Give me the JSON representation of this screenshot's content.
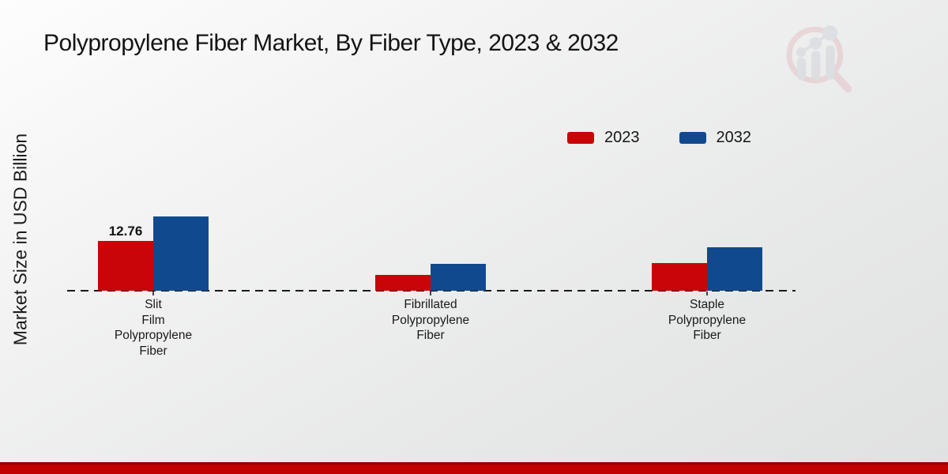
{
  "page": {
    "title": "Polypropylene Fiber Market, By Fiber Type, 2023 & 2032",
    "ylabel": "Market Size in USD Billion"
  },
  "colors": {
    "series_2023": "#c90507",
    "series_2032": "#11498f",
    "footer_bar": "#c00100",
    "footer_bar_edge": "#8f0508",
    "axis_line": "#191919",
    "watermark_ring": "#dfaab0",
    "watermark_bars": "#c3c6cf"
  },
  "legend": {
    "items": [
      {
        "label": "2023",
        "color": "#c90507"
      },
      {
        "label": "2032",
        "color": "#11498f"
      }
    ]
  },
  "icons": {
    "watermark": "magnifier-bar-chart-logo"
  },
  "chart_data": {
    "type": "bar",
    "title": "Polypropylene Fiber Market, By Fiber Type, 2023 & 2032",
    "ylabel": "Market Size in USD Billion",
    "xlabel": "",
    "categories": [
      "Slit Film Polypropylene Fiber",
      "Fibrillated Polypropylene Fiber",
      "Staple Polypropylene Fiber"
    ],
    "category_label_lines": [
      [
        "Slit",
        "Film",
        "Polypropylene",
        "Fiber"
      ],
      [
        "Fibrillated",
        "Polypropylene",
        "Fiber"
      ],
      [
        "Staple",
        "Polypropylene",
        "Fiber"
      ]
    ],
    "series": [
      {
        "name": "2023",
        "color": "#c90507",
        "values": [
          12.76,
          4.1,
          7.1
        ]
      },
      {
        "name": "2032",
        "color": "#11498f",
        "values": [
          19.0,
          6.9,
          11.1
        ]
      }
    ],
    "data_labels": [
      {
        "series": "2023",
        "category_index": 0,
        "text": "12.76"
      }
    ],
    "ylim": [
      0,
      20
    ],
    "baseline_style": "dashed",
    "grid": false,
    "legend_position": "top-right"
  }
}
